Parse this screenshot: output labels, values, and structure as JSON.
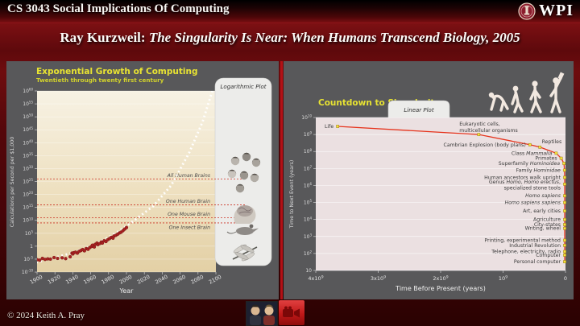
{
  "header": {
    "course": "CS 3043 Social Implications Of Computing",
    "logo_text": "WPI"
  },
  "slide_title": {
    "prefix": "Ray Kurzweil: ",
    "book": "The Singularity Is Near: When Humans Transcend Biology, 2005"
  },
  "footer": {
    "copyright": "© 2024 Keith A. Pray"
  },
  "chart_data": [
    {
      "type": "scatter",
      "title": "Exponential Growth of Computing",
      "subtitle": "Twentieth through twenty first century",
      "badge": "Logarithmic Plot",
      "xlabel": "Year",
      "ylabel": "Calculations per Second per $1,000",
      "xlim": [
        1900,
        2100
      ],
      "ylim_exp": [
        -10,
        60
      ],
      "grid": true,
      "x_ticks": [
        1900,
        1920,
        1940,
        1960,
        1980,
        2000,
        2020,
        2040,
        2060,
        2080,
        2100
      ],
      "y_tick_exponents": [
        60,
        55,
        50,
        45,
        40,
        35,
        30,
        25,
        20,
        15,
        10,
        5,
        0,
        -5,
        -10
      ],
      "reference_lines": [
        {
          "label": "All Human Brains",
          "exp": 26,
          "pos": "above"
        },
        {
          "label": "One Human Brain",
          "exp": 16,
          "pos": "above"
        },
        {
          "label": "One Mouse Brain",
          "exp": 11,
          "pos": "above"
        },
        {
          "label": "One Insect Brain",
          "exp": 9,
          "pos": "below"
        }
      ],
      "points": [
        [
          1900,
          -5.2
        ],
        [
          1903,
          -5.4
        ],
        [
          1906,
          -4.7
        ],
        [
          1909,
          -5.1
        ],
        [
          1912,
          -4.9
        ],
        [
          1915,
          -5.0
        ],
        [
          1919,
          -4.4
        ],
        [
          1923,
          -4.7
        ],
        [
          1928,
          -4.5
        ],
        [
          1932,
          -4.8
        ],
        [
          1937,
          -4.1
        ],
        [
          1939,
          -2.7
        ],
        [
          1940,
          -3.0
        ],
        [
          1941,
          -2.5
        ],
        [
          1943,
          -2.3
        ],
        [
          1945,
          -2.7
        ],
        [
          1947,
          -2.0
        ],
        [
          1949,
          -1.7
        ],
        [
          1951,
          -1.3
        ],
        [
          1953,
          -1.8
        ],
        [
          1955,
          -0.9
        ],
        [
          1957,
          -1.2
        ],
        [
          1959,
          -0.5
        ],
        [
          1961,
          -0.1
        ],
        [
          1962,
          0.4
        ],
        [
          1964,
          -0.3
        ],
        [
          1965,
          0.7
        ],
        [
          1967,
          1.2
        ],
        [
          1968,
          0.6
        ],
        [
          1970,
          1.0
        ],
        [
          1972,
          1.6
        ],
        [
          1973,
          1.2
        ],
        [
          1975,
          2.1
        ],
        [
          1977,
          1.8
        ],
        [
          1979,
          2.5
        ],
        [
          1981,
          2.9
        ],
        [
          1983,
          3.4
        ],
        [
          1985,
          3.1
        ],
        [
          1986,
          3.9
        ],
        [
          1988,
          4.2
        ],
        [
          1990,
          4.6
        ],
        [
          1992,
          5.1
        ],
        [
          1994,
          5.4
        ],
        [
          1996,
          6.0
        ],
        [
          1998,
          6.6
        ],
        [
          2000,
          7.2
        ]
      ],
      "trend": [
        [
          1899,
          -6.3
        ],
        [
          1935,
          -3.0
        ],
        [
          1965,
          0.5
        ],
        [
          1990,
          5.5
        ],
        [
          2005,
          9
        ],
        [
          2030,
          15.5
        ],
        [
          2050,
          23.5
        ],
        [
          2070,
          36
        ],
        [
          2085,
          48
        ],
        [
          2096,
          60
        ]
      ],
      "panel_images": [
        "human-faces",
        "human-brain",
        "mouse",
        "dragonfly"
      ]
    },
    {
      "type": "line",
      "title": "Countdown to Singularity",
      "badge": "Linear Plot",
      "xlabel": "Time Before Present (years)",
      "ylabel": "Time to Next Event (years)",
      "xlim_years": [
        4000000000.0,
        0
      ],
      "ylim_exp": [
        1,
        10
      ],
      "grid": true,
      "x_ticks": [
        "4x10^9",
        "3x10^9",
        "2x10^9",
        "10^9",
        "0"
      ],
      "y_tick_exponents": [
        10,
        9,
        8,
        7,
        6,
        5,
        4,
        3,
        2,
        1
      ],
      "decor": [
        "human-evolution-silhouettes"
      ],
      "events": [
        {
          "l": [
            [
              "Life",
              0
            ]
          ],
          "tbp": 3650000000.0,
          "gap": 3000000000.0
        },
        {
          "l": [
            [
              "Eukaryotic cells,",
              0
            ]
          ],
          "l2": [
            [
              "multicellular organisms",
              0
            ]
          ],
          "tbp": 1390000000.0,
          "gap": 1000000000.0,
          "pl": {
            "a": "s"
          }
        },
        {
          "l": [
            [
              "Cambrian Explosion (body plans)",
              0
            ]
          ],
          "tbp": 570000000.0,
          "gap": 250000000.0
        },
        {
          "l": [
            [
              "Reptiles",
              0
            ]
          ],
          "tbp": 410000000.0,
          "gap": 180000000.0,
          "pl": {
            "dx": 32,
            "dy": -7
          }
        },
        {
          "l": [
            [
              "Class ",
              0
            ],
            [
              "Mammalia",
              1
            ]
          ],
          "tbp": 150000000.0,
          "gap": 80000000.0
        },
        {
          "l": [
            [
              "Primates",
              0
            ]
          ],
          "tbp": 70000000.0,
          "gap": 40000000.0
        },
        {
          "l": [
            [
              "Superfamily ",
              0
            ],
            [
              "Hominoidea",
              1
            ]
          ],
          "tbp": 25000000.0,
          "gap": 20000000.0
        },
        {
          "l": [
            [
              "Family ",
              0
            ],
            [
              "Hominidae",
              1
            ]
          ],
          "tbp": 15000000.0,
          "gap": 8000000.0
        },
        {
          "l": [
            [
              "Human ancestors walk upright",
              0
            ]
          ],
          "tbp": 6000000.0,
          "gap": 3000000.0
        },
        {
          "l": [
            [
              "Genus ",
              0
            ],
            [
              "Homo",
              1
            ],
            [
              ", ",
              0
            ],
            [
              "Homo erectus",
              1
            ],
            [
              ",",
              0
            ]
          ],
          "l2": [
            [
              "specialized stone tools",
              0
            ]
          ],
          "tbp": 2000000.0,
          "gap": 1200000.0
        },
        {
          "l": [
            [
              "Homo sapiens",
              1
            ]
          ],
          "tbp": 600000.0,
          "gap": 250000.0
        },
        {
          "l": [
            [
              "Homo sapiens sapiens",
              1
            ]
          ],
          "tbp": 150000.0,
          "gap": 100000.0
        },
        {
          "l": [
            [
              "Art, early cities",
              0
            ]
          ],
          "tbp": 50000.0,
          "gap": 32000.0
        },
        {
          "l": [
            [
              "Agriculture",
              0
            ]
          ],
          "tbp": 12000.0,
          "gap": 10000.0
        },
        {
          "l": [
            [
              "City-states",
              0
            ]
          ],
          "tbp": 6000.0,
          "gap": 5000.0
        },
        {
          "l": [
            [
              "Writing, wheel",
              0
            ]
          ],
          "tbp": 5000.0,
          "gap": 3000.0
        },
        {
          "l": [
            [
              "Printing, experimental method",
              0
            ]
          ],
          "tbp": 600.0,
          "gap": 600.0
        },
        {
          "l": [
            [
              "Industrial Revolution",
              0
            ]
          ],
          "tbp": 300.0,
          "gap": 300.0
        },
        {
          "l": [
            [
              "Telephone,  electricity, radio",
              0
            ]
          ],
          "tbp": 130.0,
          "gap": 130.0
        },
        {
          "l": [
            [
              "Computer",
              0
            ]
          ],
          "tbp": 80.0,
          "gap": 80.0
        },
        {
          "l": [
            [
              "Personal computer",
              0
            ]
          ],
          "tbp": 40.0,
          "gap": 33.0
        }
      ]
    }
  ]
}
